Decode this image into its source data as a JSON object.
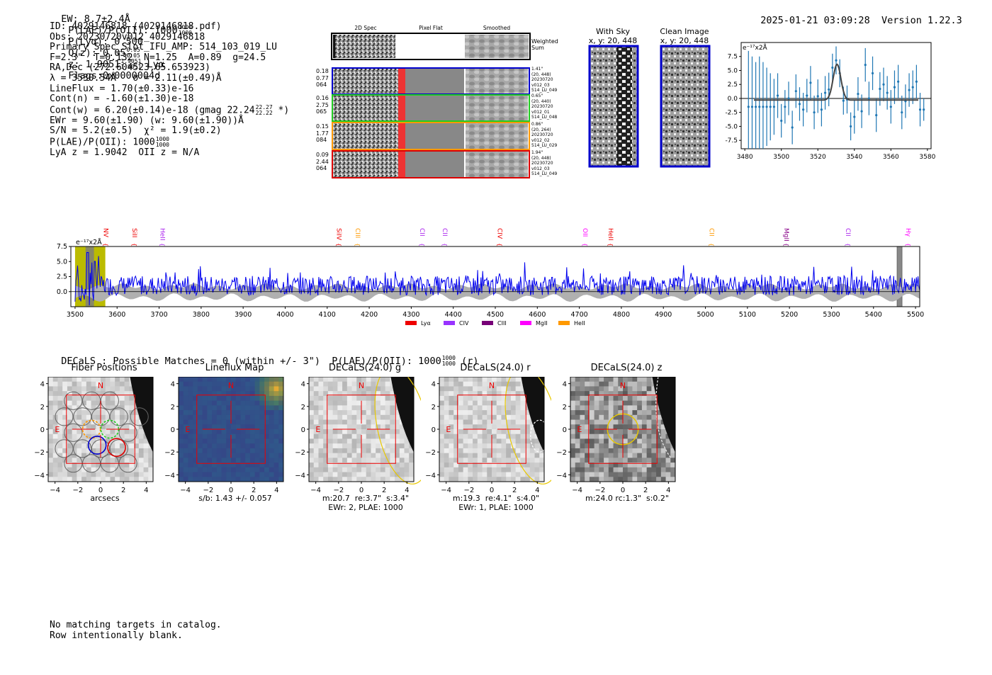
{
  "header": {
    "ew": "EW: 8.7±2.4Å",
    "plae_label": "P(LAE)/P(OII): 1000",
    "plae_hi": "1000",
    "plae_lo": "1000",
    "plya": "P(Lyα): 0.500",
    "qz_label": "Q(z): 0.05",
    "qz_hi": "0.05",
    "qz_lo": "0.05",
    "z_label": "z: 1.9051",
    "z_hi": "1.9051",
    "z_lo": "1.9051",
    "line": "Lyα",
    "flags": "Flags:0x0000004d",
    "timestamp": "2025-01-21 03:09:28",
    "version": "Version 1.22.3"
  },
  "info": {
    "id": "ID: 4029146818 (4029146818.pdf)",
    "obs": "Obs: 20230720v012_4029146818",
    "primary": "Primary Spec_Slot_IFU_AMP: 514_103_019_LU",
    "fiber": "F=2.3\"  T=0.132  N=1.25  A=0.89  g=24.5",
    "radec": "RA,Dec (272.604523,65.653923)",
    "lambda": "λ = 3530.54Å   σ = 2.11(±0.49)Å",
    "lineflux": "LineFlux = 1.70(±0.33)e-16",
    "contn": "Cont(n) = -1.60(±1.30)e-18",
    "contw": "Cont(w) = 6.20(±0.14)e-18 (gmag 22.24",
    "contw_hi": "22.27",
    "contw_lo": "22.22",
    "contw_tail": "*)",
    "ewr": "EWr = 9.60(±1.90) (w: 9.60(±1.90))Å",
    "sn": "S/N = 5.2(±0.5)  χ² = 1.9(±0.2)",
    "plae": "P(LAE)/P(OII): 1000",
    "plae_hi": "1000",
    "plae_lo": "1000",
    "lya": "LyA z = 1.9042  OII z = N/A"
  },
  "cutouts": {
    "col_2d": "2D Spec",
    "col_flat": "Pixel Flat",
    "col_smooth": "Smoothed",
    "weighted": "Weighted Sum",
    "rows": [
      {
        "left": [
          "0.18",
          "0.77",
          "064"
        ],
        "right": [
          "1.41\"",
          "(20, 448)",
          "20230720",
          "v012_03",
          "514_LU_049"
        ],
        "color": "#0000cc"
      },
      {
        "left": [
          "0.16",
          "2.75",
          "065"
        ],
        "right": [
          "0.65\"",
          "(20, 440)",
          "20230720",
          "v012_01",
          "514_LU_048"
        ],
        "color": "#22cc22"
      },
      {
        "left": [
          "0.15",
          "1.77",
          "084"
        ],
        "right": [
          "0.86\"",
          "(20, 264)",
          "20230720",
          "v012_02",
          "514_LU_029"
        ],
        "color": "#ff9900"
      },
      {
        "left": [
          "0.09",
          "2.44",
          "064"
        ],
        "right": [
          "1.94\"",
          "(20, 448)",
          "20230720",
          "v012_03",
          "514_LU_049"
        ],
        "color": "#dd0000"
      }
    ]
  },
  "sky": {
    "with_sky_title": "With Sky",
    "with_sky_coords": "x, y: 20, 448",
    "clean_title": "Clean Image",
    "clean_coords": "x, y: 20, 448"
  },
  "zoom_plot": {
    "unit": "e⁻¹⁷x2Å",
    "xticks": [
      "3480",
      "3500",
      "3520",
      "3540",
      "3560",
      "3580"
    ],
    "yticks": [
      "7.5",
      "5.0",
      "2.5",
      "0.0",
      "-2.5",
      "-5.0",
      "-7.5"
    ]
  },
  "spectrum": {
    "unit": "e⁻¹⁷x2Å",
    "yticks": [
      "7.5",
      "5.0",
      "2.5",
      "0.0"
    ],
    "xticks": [
      "3500",
      "3600",
      "3700",
      "3800",
      "3900",
      "4000",
      "4100",
      "4200",
      "4300",
      "4400",
      "4500",
      "4600",
      "4700",
      "4800",
      "4900",
      "5000",
      "5100",
      "5200",
      "5300",
      "5400",
      "5500"
    ],
    "lines": [
      {
        "name": "NV",
        "color": "#ee0000"
      },
      {
        "name": "SiII",
        "color": "#ee0000"
      },
      {
        "name": "HeII",
        "color": "#aa22ee"
      },
      {
        "name": "SiIV",
        "color": "#ee0000"
      },
      {
        "name": "CIII",
        "color": "#ff9900"
      },
      {
        "name": "CII",
        "color": "#aa22ee"
      },
      {
        "name": "CII",
        "color": "#aa22ee"
      },
      {
        "name": "CIV",
        "color": "#ee0000"
      },
      {
        "name": "OII",
        "color": "#ff00ff"
      },
      {
        "name": "HeII",
        "color": "#ee0000"
      },
      {
        "name": "CII",
        "color": "#ff9900"
      },
      {
        "name": "MgII",
        "color": "#880088"
      },
      {
        "name": "CII",
        "color": "#aa22ee"
      },
      {
        "name": "Hγ",
        "color": "#ff00ff"
      }
    ],
    "legend": [
      {
        "name": "Lyα",
        "color": "#ee0000"
      },
      {
        "name": "CIV",
        "color": "#9933ff"
      },
      {
        "name": "CIII",
        "color": "#770077"
      },
      {
        "name": "MgII",
        "color": "#ff00ff"
      },
      {
        "name": "HeII",
        "color": "#ff9900"
      }
    ]
  },
  "decals": {
    "title": "DECaLS : Possible Matches = 0 (within +/- 3\")  P(LAE)/P(OII): 1000",
    "frac_hi": "1000",
    "frac_lo": "1000",
    "band": "(r)",
    "panels": [
      {
        "title": "Fiber Positions",
        "caption1": "arcsecs",
        "caption2": ""
      },
      {
        "title": "Lineflux Map",
        "caption1": "s/b: 1.43 +/- 0.057",
        "caption2": ""
      },
      {
        "title": "DECaLS(24.0) g",
        "caption1": "m:20.7  re:3.7\"  s:3.4\"",
        "caption2": "EWr: 2, PLAE: 1000"
      },
      {
        "title": "DECaLS(24.0) r",
        "caption1": "m:19.3  re:4.1\"  s:4.0\"",
        "caption2": "EWr: 1, PLAE: 1000"
      },
      {
        "title": "DECaLS(24.0) z",
        "caption1": "m:24.0 rc:1.3\"  s:0.2\"",
        "caption2": ""
      }
    ],
    "axis_ticks": [
      "4",
      "2",
      "0",
      "−2",
      "−4"
    ],
    "xaxis_ticks": [
      "−4",
      "−2",
      "0",
      "2",
      "4"
    ],
    "north": "N",
    "east": "E"
  },
  "footer": {
    "line1": "No matching targets in catalog.",
    "line2": "Row intentionally blank."
  }
}
